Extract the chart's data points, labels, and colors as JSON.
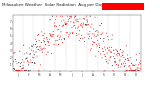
{
  "title": "Milwaukee Weather  Solar Radiation  Avg per Day W/m2/minute",
  "title_fontsize": 3.0,
  "bg_color": "#ffffff",
  "plot_bg": "#ffffff",
  "dot_color_primary": "#ff0000",
  "dot_color_secondary": "#000000",
  "highlight_color": "#ff0000",
  "x_labels": [
    "J",
    "F",
    "M",
    "A",
    "M",
    "J",
    "J",
    "A",
    "S",
    "O",
    "N",
    "D"
  ],
  "ylim": [
    0,
    8
  ],
  "yticks": [
    1,
    2,
    3,
    4,
    5,
    6,
    7
  ],
  "grid_color": "#bbbbbb",
  "seed": 42
}
